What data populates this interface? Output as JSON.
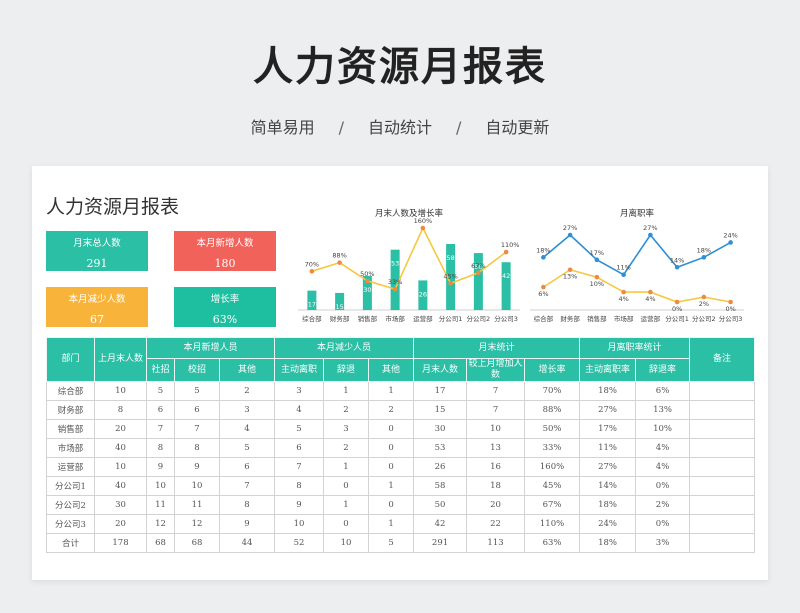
{
  "header": {
    "title": "人力资源月报表",
    "features": [
      "简单易用",
      "自动统计",
      "自动更新"
    ],
    "separator": "/"
  },
  "sheet": {
    "title": "人力资源月报表",
    "kpis": [
      {
        "label": "月末总人数",
        "value": "291",
        "color": "#2bbfa6"
      },
      {
        "label": "本月新增人数",
        "value": "180",
        "color": "#f0625a"
      },
      {
        "label": "本月减少人数",
        "value": "67",
        "color": "#f8b33b"
      },
      {
        "label": "增长率",
        "value": "63%",
        "color": "#1ebfa0"
      }
    ]
  },
  "chart_data": [
    {
      "type": "bar",
      "title": "月末人数及增长率",
      "categories": [
        "综合部",
        "财务部",
        "销售部",
        "市场部",
        "运营部",
        "分公司1",
        "分公司2",
        "分公司3"
      ],
      "series": [
        {
          "values": [
            17,
            15,
            30,
            53,
            26,
            58,
            50,
            42
          ],
          "labels": [
            "17",
            "15",
            "30",
            "53",
            "26",
            "58",
            "50",
            "42"
          ],
          "color": "#2bbfa6",
          "kind": "bar"
        },
        {
          "values": [
            70,
            88,
            50,
            33,
            160,
            45,
            67,
            110
          ],
          "labels": [
            "70%",
            "88%",
            "50%",
            "33%",
            "160%",
            "45%",
            "67%",
            "110%"
          ],
          "color": "#f5c842",
          "kind": "line"
        }
      ]
    },
    {
      "type": "line",
      "title": "月离职率",
      "categories": [
        "综合部",
        "财务部",
        "销售部",
        "市场部",
        "运营部",
        "分公司1",
        "分公司2",
        "分公司3"
      ],
      "series": [
        {
          "values": [
            18,
            27,
            17,
            11,
            27,
            14,
            18,
            24
          ],
          "labels": [
            "18%",
            "27%",
            "17%",
            "11%",
            "27%",
            "14%",
            "18%",
            "24%"
          ],
          "color": "#2f8fd4"
        },
        {
          "values": [
            6,
            13,
            10,
            4,
            4,
            0,
            2,
            0
          ],
          "labels": [
            "6%",
            "13%",
            "10%",
            "4%",
            "4%",
            "0%",
            "2%",
            "0%"
          ],
          "color": "#f5c842"
        }
      ]
    }
  ],
  "table": {
    "headers": {
      "dept": "部门",
      "last_month": "上月末人数",
      "new_group": "本月新增人员",
      "new_cols": [
        "社招",
        "校招",
        "其他"
      ],
      "reduce_group": "本月减少人员",
      "reduce_cols": [
        "主动离职",
        "辞退",
        "其他"
      ],
      "month_group": "月末统计",
      "month_cols": [
        "月末人数",
        "较上月增加人数",
        "增长率"
      ],
      "leave_group": "月离职率统计",
      "leave_cols": [
        "主动离职率",
        "辞退率"
      ],
      "note": "备注"
    },
    "rows": [
      [
        "综合部",
        "10",
        "5",
        "5",
        "2",
        "3",
        "1",
        "1",
        "17",
        "7",
        "70%",
        "18%",
        "6%",
        ""
      ],
      [
        "财务部",
        "8",
        "6",
        "6",
        "3",
        "4",
        "2",
        "2",
        "15",
        "7",
        "88%",
        "27%",
        "13%",
        ""
      ],
      [
        "销售部",
        "20",
        "7",
        "7",
        "4",
        "5",
        "3",
        "0",
        "30",
        "10",
        "50%",
        "17%",
        "10%",
        ""
      ],
      [
        "市场部",
        "40",
        "8",
        "8",
        "5",
        "6",
        "2",
        "0",
        "53",
        "13",
        "33%",
        "11%",
        "4%",
        ""
      ],
      [
        "运营部",
        "10",
        "9",
        "9",
        "6",
        "7",
        "1",
        "0",
        "26",
        "16",
        "160%",
        "27%",
        "4%",
        ""
      ],
      [
        "分公司1",
        "40",
        "10",
        "10",
        "7",
        "8",
        "0",
        "1",
        "58",
        "18",
        "45%",
        "14%",
        "0%",
        ""
      ],
      [
        "分公司2",
        "30",
        "11",
        "11",
        "8",
        "9",
        "1",
        "0",
        "50",
        "20",
        "67%",
        "18%",
        "2%",
        ""
      ],
      [
        "分公司3",
        "20",
        "12",
        "12",
        "9",
        "10",
        "0",
        "1",
        "42",
        "22",
        "110%",
        "24%",
        "0%",
        ""
      ],
      [
        "合计",
        "178",
        "68",
        "68",
        "44",
        "52",
        "10",
        "5",
        "291",
        "113",
        "63%",
        "18%",
        "3%",
        ""
      ]
    ]
  }
}
